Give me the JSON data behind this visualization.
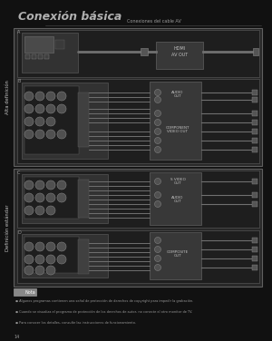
{
  "bg_color": "#1a1a1a",
  "page_bg": "#111111",
  "title": "Conexión básica",
  "subtitle": "Conexiones del cable AV",
  "section1_label": "Alta definición",
  "section2_label": "Definición estándar",
  "nota_label": "Nota",
  "title_color": "#b0b0b0",
  "text_color": "#c0c0c0",
  "light_gray": "#999999",
  "white": "#ffffff",
  "mid_gray": "#505050",
  "panel_bg": "#282828",
  "panel_bg2": "#323232",
  "dark_panel": "#1e1e1e",
  "connector_bg": "#404040",
  "connector_bg2": "#383838",
  "border_color": "#606060",
  "cable_color": "#707070",
  "circle_fill": "#505050",
  "circle_edge": "#808080",
  "label_bg": "#888888",
  "line_color": "#888888"
}
